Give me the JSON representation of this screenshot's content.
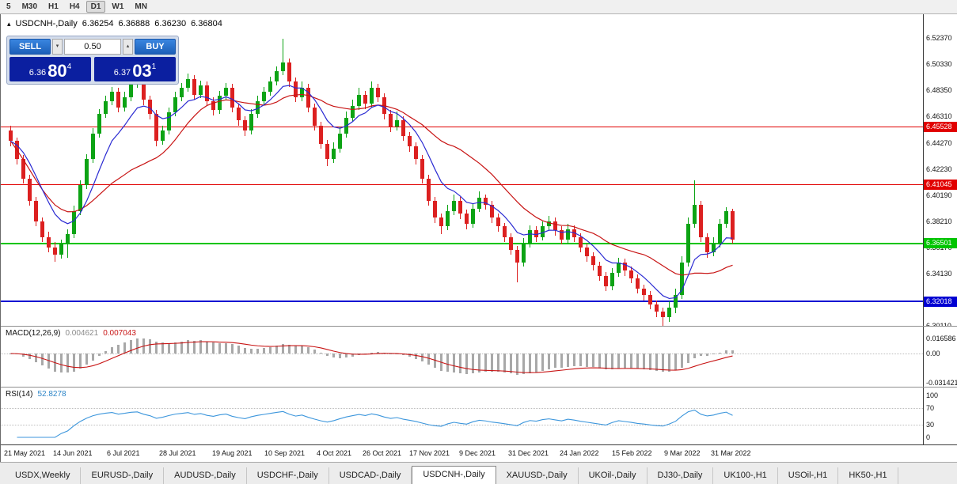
{
  "toolbar": {
    "timeframes": [
      {
        "label": "5",
        "active": false
      },
      {
        "label": "M30",
        "active": false
      },
      {
        "label": "H1",
        "active": false
      },
      {
        "label": "H4",
        "active": false
      },
      {
        "label": "D1",
        "active": true
      },
      {
        "label": "W1",
        "active": false
      },
      {
        "label": "MN",
        "active": false
      }
    ]
  },
  "chart": {
    "arrow": "▴",
    "symbol_label": "USDCNH-,Daily",
    "ohlc": {
      "open": "6.36254",
      "high": "6.36888",
      "low": "6.36230",
      "close": "6.36804"
    },
    "hlines": [
      {
        "price": 6.45528,
        "label": "6.45528",
        "color": "#e10000",
        "thickness": 1
      },
      {
        "price": 6.41045,
        "label": "6.41045",
        "color": "#e10000",
        "thickness": 1
      },
      {
        "price": 6.36501,
        "label": "6.36501",
        "color": "#00c400",
        "thickness": 2
      },
      {
        "price": 6.32018,
        "label": "6.32018",
        "color": "#0000d2",
        "thickness": 2
      }
    ]
  },
  "trade_widget": {
    "sell_label": "SELL",
    "buy_label": "BUY",
    "volume": "0.50",
    "step_down": "▾",
    "step_up": "▴",
    "sell_price": {
      "base": "6.36",
      "big": "80",
      "sup": "4"
    },
    "buy_price": {
      "base": "6.37",
      "big": "03",
      "sup": "1"
    }
  },
  "price_axis": {
    "ticks": [
      "6.52370",
      "6.50330",
      "6.48350",
      "6.46310",
      "6.44270",
      "6.42230",
      "6.40190",
      "6.38210",
      "6.36170",
      "6.34130",
      "6.30110"
    ]
  },
  "macd": {
    "label": "MACD(12,26,9)",
    "value": "0.004621",
    "signal": "0.007043",
    "axis_labels": [
      "0.016586",
      "0.00",
      "-0.031421"
    ],
    "axis_values": [
      0.016586,
      0,
      -0.031421
    ],
    "hist_color": "#a8a8a8",
    "signal_color": "#c81414"
  },
  "rsi": {
    "label": "RSI(14)",
    "value": "52.8278",
    "axis_labels": [
      "100",
      "70",
      "30",
      "0"
    ],
    "axis_values": [
      100,
      70,
      30,
      0
    ],
    "levels": [
      70,
      30
    ],
    "line_color": "#3c96dc"
  },
  "tabs": [
    {
      "label": "USDX,Weekly",
      "active": false
    },
    {
      "label": "EURUSD-,Daily",
      "active": false
    },
    {
      "label": "AUDUSD-,Daily",
      "active": false
    },
    {
      "label": "USDCHF-,Daily",
      "active": false
    },
    {
      "label": "USDCAD-,Daily",
      "active": false
    },
    {
      "label": "USDCNH-,Daily",
      "active": true
    },
    {
      "label": "XAUUSD-,Daily",
      "active": false
    },
    {
      "label": "UKOil-,Daily",
      "active": false
    },
    {
      "label": "DJ30-,Daily",
      "active": false
    },
    {
      "label": "UK100-,H1",
      "active": false
    },
    {
      "label": "USOil-,H1",
      "active": false
    },
    {
      "label": "HK50-,H1",
      "active": false
    }
  ],
  "chart_data": {
    "type": "candlestick",
    "symbol": "USDCNH-",
    "timeframe": "Daily",
    "title": "USDCNH-,Daily",
    "ylim": [
      6.295,
      6.542
    ],
    "x_labels": [
      "21 May 2021",
      "14 Jun 2021",
      "6 Jul 2021",
      "28 Jul 2021",
      "19 Aug 2021",
      "10 Sep 2021",
      "4 Oct 2021",
      "26 Oct 2021",
      "17 Nov 2021",
      "9 Dec 2021",
      "31 Dec 2021",
      "24 Jan 2022",
      "15 Feb 2022",
      "9 Mar 2022",
      "31 Mar 2022"
    ],
    "colors": {
      "up": "#0ca314",
      "down": "#dc2020",
      "ma_fast": "#2a2ad2",
      "ma_slow": "#c81414"
    },
    "ma_fast_period": 8,
    "ma_slow_period": 20,
    "candles": [
      [
        6.452,
        6.456,
        6.44,
        6.444
      ],
      [
        6.444,
        6.447,
        6.426,
        6.43
      ],
      [
        6.43,
        6.433,
        6.411,
        6.415
      ],
      [
        6.415,
        6.418,
        6.394,
        6.398
      ],
      [
        6.398,
        6.401,
        6.378,
        6.382
      ],
      [
        6.382,
        6.385,
        6.366,
        6.37
      ],
      [
        6.37,
        6.374,
        6.358,
        6.362
      ],
      [
        6.362,
        6.366,
        6.351,
        6.356
      ],
      [
        6.356,
        6.368,
        6.353,
        6.365
      ],
      [
        6.365,
        6.376,
        6.354,
        6.372
      ],
      [
        6.372,
        6.394,
        6.369,
        6.39
      ],
      [
        6.39,
        6.414,
        6.387,
        6.41
      ],
      [
        6.41,
        6.434,
        6.407,
        6.43
      ],
      [
        6.43,
        6.454,
        6.427,
        6.45
      ],
      [
        6.45,
        6.469,
        6.447,
        6.465
      ],
      [
        6.465,
        6.479,
        6.462,
        6.475
      ],
      [
        6.475,
        6.486,
        6.472,
        6.482
      ],
      [
        6.482,
        6.485,
        6.466,
        6.47
      ],
      [
        6.47,
        6.482,
        6.467,
        6.478
      ],
      [
        6.478,
        6.492,
        6.475,
        6.488
      ],
      [
        6.488,
        6.496,
        6.485,
        6.492
      ],
      [
        6.492,
        6.495,
        6.472,
        6.476
      ],
      [
        6.476,
        6.479,
        6.461,
        6.465
      ],
      [
        6.465,
        6.468,
        6.44,
        6.444
      ],
      [
        6.444,
        6.456,
        6.441,
        6.452
      ],
      [
        6.452,
        6.47,
        6.449,
        6.466
      ],
      [
        6.466,
        6.482,
        6.463,
        6.478
      ],
      [
        6.478,
        6.489,
        6.475,
        6.485
      ],
      [
        6.485,
        6.496,
        6.482,
        6.492
      ],
      [
        6.492,
        6.495,
        6.476,
        6.48
      ],
      [
        6.48,
        6.491,
        6.477,
        6.487
      ],
      [
        6.487,
        6.49,
        6.471,
        6.475
      ],
      [
        6.475,
        6.478,
        6.464,
        6.468
      ],
      [
        6.468,
        6.483,
        6.465,
        6.479
      ],
      [
        6.479,
        6.489,
        6.476,
        6.485
      ],
      [
        6.485,
        6.488,
        6.466,
        6.47
      ],
      [
        6.47,
        6.473,
        6.456,
        6.46
      ],
      [
        6.46,
        6.463,
        6.448,
        6.452
      ],
      [
        6.452,
        6.469,
        6.449,
        6.465
      ],
      [
        6.465,
        6.479,
        6.462,
        6.475
      ],
      [
        6.475,
        6.486,
        6.472,
        6.482
      ],
      [
        6.482,
        6.494,
        6.479,
        6.49
      ],
      [
        6.49,
        6.502,
        6.487,
        6.498
      ],
      [
        6.498,
        6.523,
        6.495,
        6.505
      ],
      [
        6.505,
        6.508,
        6.486,
        6.49
      ],
      [
        6.49,
        6.493,
        6.474,
        6.478
      ],
      [
        6.478,
        6.49,
        6.475,
        6.485
      ],
      [
        6.485,
        6.488,
        6.466,
        6.47
      ],
      [
        6.47,
        6.473,
        6.452,
        6.456
      ],
      [
        6.456,
        6.459,
        6.438,
        6.442
      ],
      [
        6.442,
        6.445,
        6.425,
        6.43
      ],
      [
        6.43,
        6.443,
        6.427,
        6.438
      ],
      [
        6.438,
        6.455,
        6.435,
        6.45
      ],
      [
        6.45,
        6.467,
        6.447,
        6.462
      ],
      [
        6.462,
        6.476,
        6.459,
        6.471
      ],
      [
        6.471,
        6.485,
        6.468,
        6.48
      ],
      [
        6.48,
        6.483,
        6.469,
        6.473
      ],
      [
        6.473,
        6.49,
        6.47,
        6.485
      ],
      [
        6.485,
        6.488,
        6.474,
        6.478
      ],
      [
        6.478,
        6.481,
        6.461,
        6.465
      ],
      [
        6.465,
        6.468,
        6.451,
        6.455
      ],
      [
        6.455,
        6.467,
        6.452,
        6.46
      ],
      [
        6.46,
        6.463,
        6.444,
        6.448
      ],
      [
        6.448,
        6.451,
        6.436,
        6.44
      ],
      [
        6.44,
        6.443,
        6.426,
        6.43
      ],
      [
        6.43,
        6.433,
        6.411,
        6.415
      ],
      [
        6.415,
        6.418,
        6.394,
        6.398
      ],
      [
        6.398,
        6.401,
        6.381,
        6.385
      ],
      [
        6.385,
        6.388,
        6.372,
        6.378
      ],
      [
        6.378,
        6.395,
        6.375,
        6.39
      ],
      [
        6.39,
        6.403,
        6.387,
        6.398
      ],
      [
        6.398,
        6.401,
        6.384,
        6.388
      ],
      [
        6.388,
        6.391,
        6.376,
        6.38
      ],
      [
        6.38,
        6.396,
        6.377,
        6.392
      ],
      [
        6.392,
        6.405,
        6.389,
        6.4
      ],
      [
        6.4,
        6.403,
        6.391,
        6.395
      ],
      [
        6.395,
        6.398,
        6.381,
        6.385
      ],
      [
        6.385,
        6.388,
        6.374,
        6.378
      ],
      [
        6.378,
        6.381,
        6.366,
        6.37
      ],
      [
        6.37,
        6.373,
        6.356,
        6.36
      ],
      [
        6.36,
        6.363,
        6.335,
        6.35
      ],
      [
        6.35,
        6.369,
        6.347,
        6.365
      ],
      [
        6.365,
        6.379,
        6.362,
        6.375
      ],
      [
        6.375,
        6.378,
        6.366,
        6.37
      ],
      [
        6.37,
        6.382,
        6.367,
        6.378
      ],
      [
        6.378,
        6.386,
        6.375,
        6.382
      ],
      [
        6.382,
        6.385,
        6.371,
        6.375
      ],
      [
        6.375,
        6.378,
        6.364,
        6.368
      ],
      [
        6.368,
        6.38,
        6.365,
        6.376
      ],
      [
        6.376,
        6.379,
        6.366,
        6.37
      ],
      [
        6.37,
        6.373,
        6.358,
        6.362
      ],
      [
        6.362,
        6.365,
        6.351,
        6.355
      ],
      [
        6.355,
        6.358,
        6.344,
        6.348
      ],
      [
        6.348,
        6.351,
        6.336,
        6.34
      ],
      [
        6.34,
        6.343,
        6.328,
        6.332
      ],
      [
        6.332,
        6.346,
        6.329,
        6.342
      ],
      [
        6.342,
        6.354,
        6.339,
        6.35
      ],
      [
        6.35,
        6.353,
        6.34,
        6.344
      ],
      [
        6.344,
        6.347,
        6.334,
        6.338
      ],
      [
        6.338,
        6.341,
        6.326,
        6.33
      ],
      [
        6.33,
        6.333,
        6.321,
        6.325
      ],
      [
        6.325,
        6.328,
        6.314,
        6.318
      ],
      [
        6.318,
        6.321,
        6.308,
        6.312
      ],
      [
        6.312,
        6.315,
        6.301,
        6.308
      ],
      [
        6.308,
        6.32,
        6.304,
        6.315
      ],
      [
        6.315,
        6.33,
        6.311,
        6.325
      ],
      [
        6.325,
        6.355,
        6.322,
        6.35
      ],
      [
        6.35,
        6.385,
        6.347,
        6.38
      ],
      [
        6.38,
        6.414,
        6.377,
        6.395
      ],
      [
        6.395,
        6.398,
        6.366,
        6.37
      ],
      [
        6.37,
        6.373,
        6.354,
        6.358
      ],
      [
        6.358,
        6.37,
        6.355,
        6.365
      ],
      [
        6.365,
        6.384,
        6.362,
        6.38
      ],
      [
        6.38,
        6.393,
        6.377,
        6.39
      ],
      [
        6.39,
        6.392,
        6.365,
        6.368
      ]
    ]
  }
}
